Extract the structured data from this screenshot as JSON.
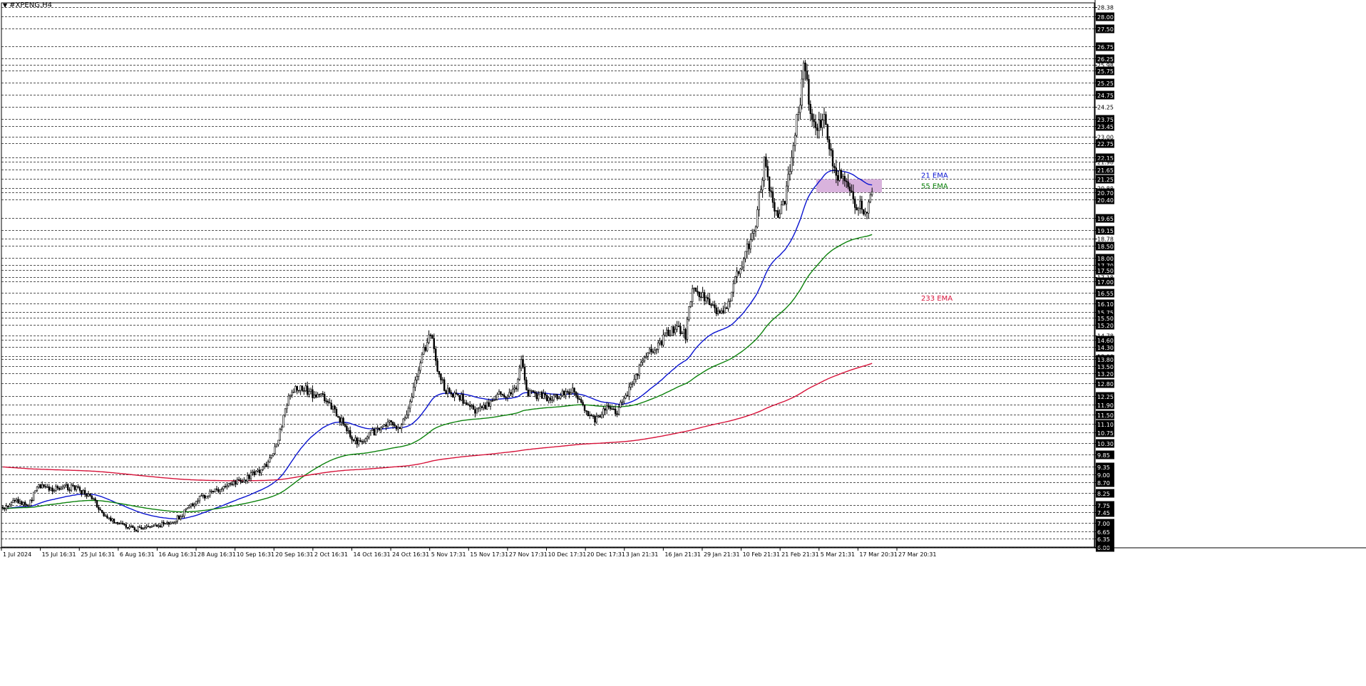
{
  "window": {
    "symbol_title": "#XPENG,H4",
    "menu_icon": "triangle-down-icon"
  },
  "colors": {
    "background": "#ffffff",
    "grid": "#1a1a1a",
    "candle": "#000000",
    "ema21": "#0a14d0",
    "ema55": "#0c820c",
    "ema233": "#d6133a",
    "zone_fill": "#d9b3dd",
    "price_tag_bg": "#000000",
    "price_tag_text": "#ffffff"
  },
  "chart_data": {
    "type": "candlestick",
    "title": "#XPENG,H4",
    "ylim": [
      6.0,
      28.38
    ],
    "y_axis_ticks": [
      "28.38",
      "28.00",
      "27.50",
      "26.75",
      "26.25",
      "25.98",
      "25.75",
      "25.25",
      "24.75",
      "24.25",
      "23.75",
      "23.45",
      "23.00",
      "22.75",
      "22.15",
      "21.98",
      "21.65",
      "21.25",
      "20.88",
      "20.70",
      "20.40",
      "19.65",
      "19.15",
      "18.78",
      "18.50",
      "18.00",
      "17.70",
      "17.50",
      "17.18",
      "17.00",
      "16.55",
      "16.10",
      "15.75",
      "15.50",
      "15.20",
      "14.78",
      "14.60",
      "14.30",
      "13.90",
      "13.80",
      "13.50",
      "13.20",
      "12.80",
      "12.25",
      "11.90",
      "11.50",
      "11.10",
      "10.75",
      "10.30",
      "9.85",
      "9.35",
      "9.00",
      "8.70",
      "8.25",
      "7.75",
      "7.45",
      "7.00",
      "6.65",
      "6.35",
      "6.00"
    ],
    "y_axis_tagged": [
      "28.00",
      "27.50",
      "26.75",
      "26.25",
      "25.75",
      "25.25",
      "24.75",
      "23.75",
      "23.45",
      "22.75",
      "22.15",
      "21.65",
      "21.25",
      "20.70",
      "20.40",
      "19.65",
      "19.15",
      "18.50",
      "18.00",
      "17.70",
      "17.50",
      "17.00",
      "16.55",
      "16.10",
      "15.75",
      "15.50",
      "15.20",
      "14.60",
      "14.30",
      "13.80",
      "13.50",
      "13.20",
      "12.80",
      "12.25",
      "11.90",
      "11.50",
      "11.10",
      "10.75",
      "10.30",
      "9.85",
      "9.35",
      "9.00",
      "8.70",
      "8.25",
      "7.75",
      "7.45",
      "7.00",
      "6.65",
      "6.35",
      "6.00"
    ],
    "x_axis_ticks": [
      "1 Jul 2024",
      "15 Jul 16:31",
      "25 Jul 16:31",
      "6 Aug 16:31",
      "16 Aug 16:31",
      "28 Aug 16:31",
      "10 Sep 16:31",
      "20 Sep 16:31",
      "2 Oct 16:31",
      "14 Oct 16:31",
      "24 Oct 16:31",
      "5 Nov 17:31",
      "15 Nov 17:31",
      "27 Nov 17:31",
      "10 Dec 17:31",
      "20 Dec 17:31",
      "3 Jan 21:31",
      "16 Jan 21:31",
      "29 Jan 21:31",
      "10 Feb 21:31",
      "21 Feb 21:31",
      "5 Mar 21:31",
      "17 Mar 20:31",
      "27 Mar 20:31"
    ],
    "anchors": [
      [
        0,
        7.6
      ],
      [
        20,
        7.9
      ],
      [
        40,
        7.8
      ],
      [
        55,
        8.6
      ],
      [
        70,
        8.4
      ],
      [
        90,
        8.5
      ],
      [
        110,
        8.4
      ],
      [
        130,
        8.0
      ],
      [
        150,
        7.2
      ],
      [
        170,
        6.95
      ],
      [
        190,
        6.75
      ],
      [
        210,
        6.85
      ],
      [
        230,
        6.95
      ],
      [
        245,
        7.1
      ],
      [
        260,
        7.5
      ],
      [
        280,
        8.0
      ],
      [
        300,
        8.3
      ],
      [
        320,
        8.55
      ],
      [
        340,
        8.75
      ],
      [
        360,
        9.1
      ],
      [
        375,
        9.4
      ],
      [
        390,
        10.4
      ],
      [
        400,
        11.8
      ],
      [
        410,
        12.5
      ],
      [
        425,
        12.6
      ],
      [
        440,
        12.3
      ],
      [
        455,
        12.2
      ],
      [
        470,
        11.6
      ],
      [
        485,
        11.0
      ],
      [
        500,
        10.3
      ],
      [
        515,
        10.6
      ],
      [
        530,
        10.9
      ],
      [
        545,
        11.2
      ],
      [
        560,
        11.0
      ],
      [
        575,
        11.9
      ],
      [
        590,
        13.8
      ],
      [
        605,
        15.0
      ],
      [
        612,
        13.6
      ],
      [
        625,
        12.5
      ],
      [
        640,
        12.3
      ],
      [
        655,
        12.0
      ],
      [
        670,
        11.6
      ],
      [
        685,
        11.9
      ],
      [
        700,
        12.3
      ],
      [
        715,
        12.4
      ],
      [
        725,
        12.6
      ],
      [
        732,
        13.8
      ],
      [
        740,
        12.4
      ],
      [
        755,
        12.3
      ],
      [
        770,
        12.2
      ],
      [
        785,
        12.3
      ],
      [
        800,
        12.5
      ],
      [
        810,
        12.3
      ],
      [
        820,
        11.6
      ],
      [
        835,
        11.2
      ],
      [
        850,
        11.7
      ],
      [
        865,
        11.6
      ],
      [
        875,
        12.1
      ],
      [
        890,
        12.9
      ],
      [
        905,
        14.0
      ],
      [
        920,
        14.3
      ],
      [
        935,
        14.8
      ],
      [
        950,
        15.1
      ],
      [
        962,
        14.8
      ],
      [
        970,
        16.6
      ],
      [
        980,
        16.5
      ],
      [
        990,
        16.3
      ],
      [
        1000,
        15.9
      ],
      [
        1010,
        15.5
      ],
      [
        1020,
        15.9
      ],
      [
        1030,
        17.0
      ],
      [
        1040,
        17.6
      ],
      [
        1050,
        18.5
      ],
      [
        1060,
        19.2
      ],
      [
        1065,
        20.5
      ],
      [
        1072,
        22.0
      ],
      [
        1078,
        21.0
      ],
      [
        1085,
        20.0
      ],
      [
        1092,
        19.5
      ],
      [
        1100,
        20.3
      ],
      [
        1108,
        21.8
      ],
      [
        1115,
        23.1
      ],
      [
        1122,
        24.5
      ],
      [
        1128,
        26.3
      ],
      [
        1133,
        24.8
      ],
      [
        1140,
        23.6
      ],
      [
        1148,
        23.5
      ],
      [
        1155,
        23.9
      ],
      [
        1162,
        22.8
      ],
      [
        1170,
        21.8
      ],
      [
        1180,
        21.2
      ],
      [
        1190,
        20.9
      ],
      [
        1200,
        20.3
      ],
      [
        1208,
        20.0
      ],
      [
        1214,
        19.8
      ],
      [
        1220,
        20.7
      ],
      [
        1225,
        21.0
      ]
    ],
    "series": [
      {
        "name": "21 EMA",
        "color": "#0a14d0",
        "label_price": 21.4
      },
      {
        "name": "55 EMA",
        "color": "#0c820c",
        "label_price": 20.95
      },
      {
        "name": "233 EMA",
        "color": "#d6133a",
        "label_price": 16.3
      }
    ],
    "annotation_zone": {
      "price_top": 21.25,
      "price_bottom": 20.7,
      "x_start": 1145,
      "x_end": 1237
    },
    "grid": true
  }
}
